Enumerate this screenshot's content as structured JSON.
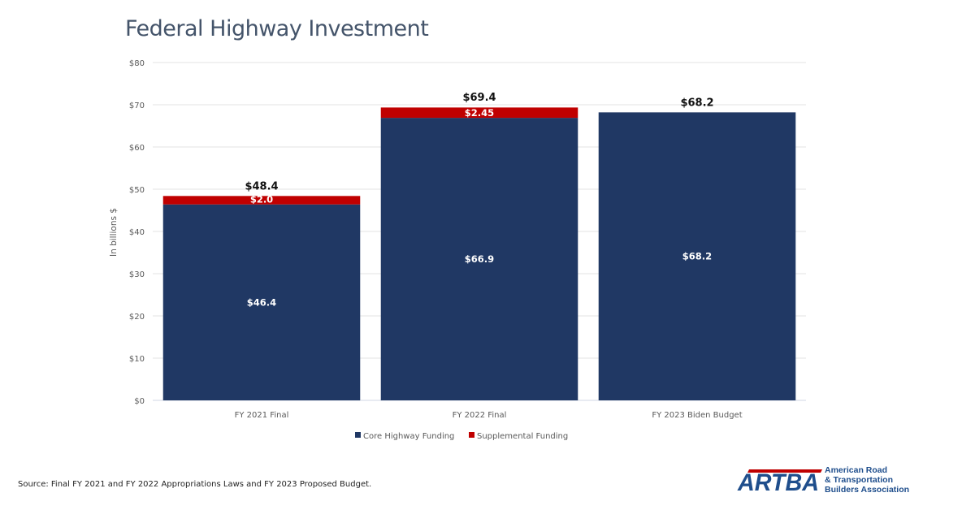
{
  "chart_data": {
    "type": "bar",
    "stacked": true,
    "title": "Federal Highway Investment",
    "xlabel": "",
    "ylabel": "In billions $",
    "ylim": [
      0,
      80
    ],
    "yticks": [
      0,
      10,
      20,
      30,
      40,
      50,
      60,
      70,
      80
    ],
    "ytick_labels": [
      "$0",
      "$10",
      "$20",
      "$30",
      "$40",
      "$50",
      "$60",
      "$70",
      "$80"
    ],
    "grid": true,
    "legend_position": "bottom",
    "categories": [
      "FY 2021 Final",
      "FY 2022 Final",
      "FY 2023 Biden Budget"
    ],
    "series": [
      {
        "name": "Core Highway Funding",
        "color": "#203864",
        "values": [
          46.4,
          66.9,
          68.2
        ],
        "labels": [
          "$46.4",
          "$66.9",
          "$68.2"
        ]
      },
      {
        "name": "Supplemental Funding",
        "color": "#c00000",
        "values": [
          2.0,
          2.45,
          0
        ],
        "labels": [
          "$2.0",
          "$2.45",
          ""
        ]
      }
    ],
    "totals": [
      48.4,
      69.4,
      68.2
    ],
    "total_labels": [
      "$48.4",
      "$69.4",
      "$68.2"
    ]
  },
  "footer": {
    "source": "Source: Final FY 2021 and FY 2022 Appropriations Laws and FY 2023 Proposed Budget."
  },
  "logo": {
    "mark": "ARTBA",
    "line1": "American Road",
    "line2": "& Transportation",
    "line3": "Builders Association",
    "color": "#1f4e8c",
    "accent": "#c00000"
  }
}
